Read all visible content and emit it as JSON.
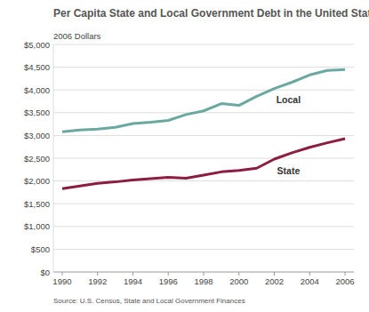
{
  "chart_data": {
    "type": "line",
    "title": "Per Capita State and Local Government Debt in the United States",
    "y_label": "2006 Dollars",
    "source": "Source: U.S. Census, State and Local Government Finances",
    "x": [
      1990,
      1991,
      1992,
      1993,
      1994,
      1995,
      1996,
      1997,
      1998,
      1999,
      2000,
      2001,
      2002,
      2003,
      2004,
      2005,
      2006
    ],
    "series": [
      {
        "name": "Local",
        "color": "#6ba9a0",
        "values": [
          3080,
          3120,
          3140,
          3180,
          3260,
          3290,
          3330,
          3460,
          3540,
          3700,
          3660,
          3860,
          4030,
          4170,
          4330,
          4430,
          4450
        ]
      },
      {
        "name": "State",
        "color": "#8c1d40",
        "values": [
          1830,
          1890,
          1950,
          1980,
          2020,
          2050,
          2080,
          2060,
          2130,
          2200,
          2230,
          2280,
          2480,
          2620,
          2740,
          2840,
          2930
        ]
      }
    ],
    "xlim": [
      1989.5,
      2006.5
    ],
    "xticks": [
      1990,
      1992,
      1994,
      1996,
      1998,
      2000,
      2002,
      2004,
      2006
    ],
    "ylim": [
      0,
      5000
    ],
    "yticks": [
      {
        "value": 0,
        "label": "$0"
      },
      {
        "value": 500,
        "label": "$500"
      },
      {
        "value": 1000,
        "label": "$1,000"
      },
      {
        "value": 1500,
        "label": "$1,500"
      },
      {
        "value": 2000,
        "label": "$2,000"
      },
      {
        "value": 2500,
        "label": "$2,500"
      },
      {
        "value": 3000,
        "label": "$3,000"
      },
      {
        "value": 3500,
        "label": "$3,500"
      },
      {
        "value": 4000,
        "label": "$4,000"
      },
      {
        "value": 4500,
        "label": "$4,500"
      },
      {
        "value": 5000,
        "label": "$5,000"
      }
    ],
    "grid": true
  }
}
